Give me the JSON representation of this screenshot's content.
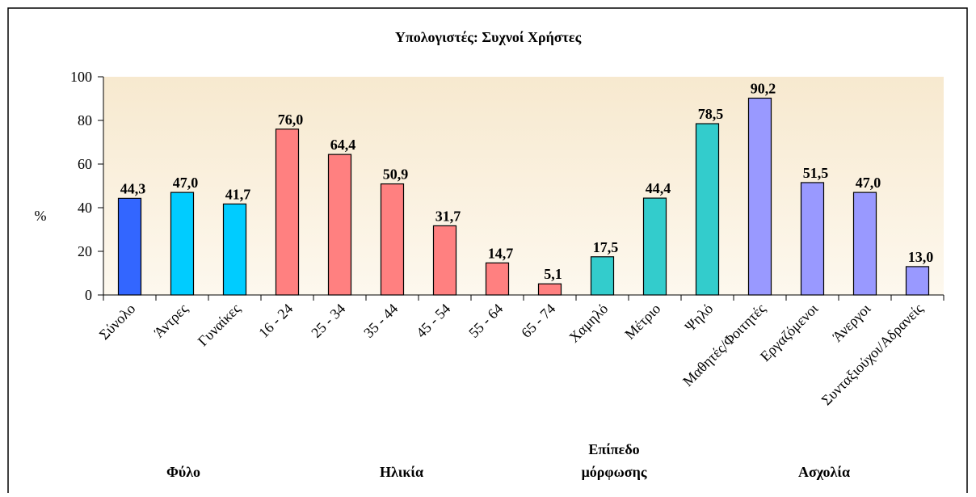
{
  "chart_data": {
    "type": "bar",
    "title": "Υπολογιστές: Συχνοί Χρήστες",
    "ylabel": "%",
    "categories": [
      "Σύνολο",
      "Άντρες",
      "Γυναίκες",
      "16 - 24",
      "25 - 34",
      "35 - 44",
      "45 - 54",
      "55 - 64",
      "65 - 74",
      "Χαμηλό",
      "Μέτριο",
      "Ψηλό",
      "Μαθητές/Φοιτητές",
      "Εργαζόμενοι",
      "Άνεργοι",
      "Συνταξιούχοι/Αδρανείς"
    ],
    "values": [
      44.3,
      47.0,
      41.7,
      76.0,
      64.4,
      50.9,
      31.7,
      14.7,
      5.1,
      17.5,
      44.4,
      78.5,
      90.2,
      51.5,
      47.0,
      13.0
    ],
    "value_labels": [
      "44,3",
      "47,0",
      "41,7",
      "76,0",
      "64,4",
      "50,9",
      "31,7",
      "14,7",
      "5,1",
      "17,5",
      "44,4",
      "78,5",
      "90,2",
      "51,5",
      "47,0",
      "13,0"
    ],
    "colors": [
      "#3366ff",
      "#00ccff",
      "#00ccff",
      "#ff8080",
      "#ff8080",
      "#ff8080",
      "#ff8080",
      "#ff8080",
      "#ff8080",
      "#33cccc",
      "#33cccc",
      "#33cccc",
      "#9999ff",
      "#9999ff",
      "#9999ff",
      "#9999ff"
    ],
    "groups": [
      [
        "Φύλο"
      ],
      [
        "Ηλικία"
      ],
      [
        "Επίπεδο",
        "μόρφωσης"
      ],
      [
        "Ασχολία"
      ]
    ],
    "ylim": [
      0,
      100
    ],
    "yticks": [
      0,
      20,
      40,
      60,
      80,
      100
    ]
  }
}
